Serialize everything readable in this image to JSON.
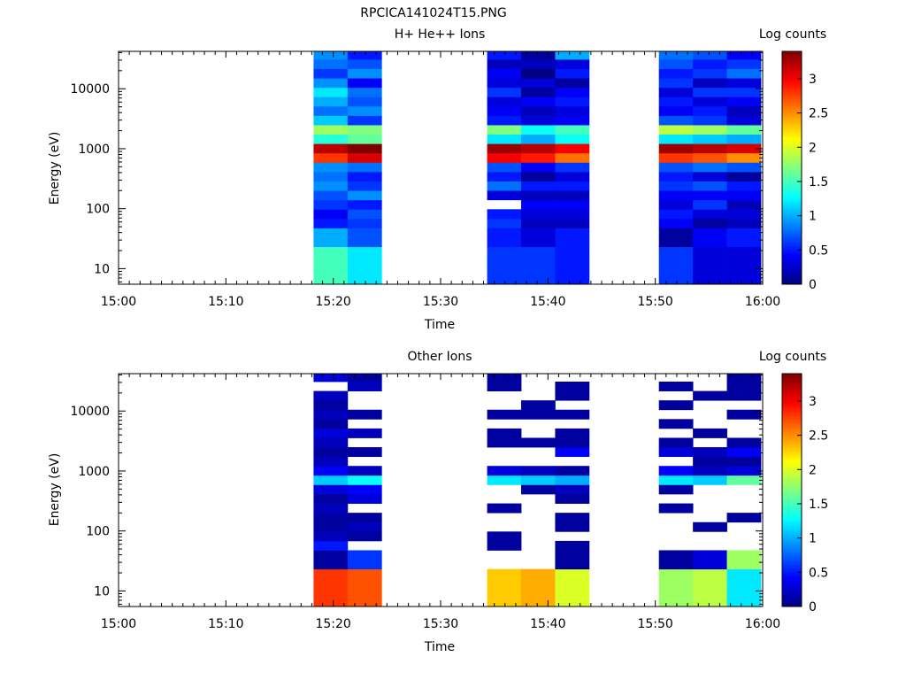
{
  "figure_title": "RPCICA141024T15.PNG",
  "chart_data": [
    {
      "type": "heatmap",
      "title": "H+ He++ Ions",
      "xlabel": "Time",
      "ylabel": "Energy (eV)",
      "x_ticks": [
        "15:00",
        "15:10",
        "15:20",
        "15:30",
        "15:40",
        "15:50",
        "16:00"
      ],
      "xlim": [
        "15:00",
        "16:00"
      ],
      "y_scale": "log",
      "y_ticks": [
        10,
        100,
        1000,
        10000
      ],
      "ylim": [
        5.5,
        42000
      ],
      "colorbar": {
        "label": "Log counts",
        "range": [
          0,
          3.4
        ],
        "ticks": [
          "0",
          "0.5",
          "1",
          "1.5",
          "2",
          "2.5",
          "3"
        ],
        "colormap": "jet"
      },
      "energy_bins": [
        5.5,
        7.9,
        11.3,
        16.2,
        23.2,
        33.3,
        47.7,
        68.3,
        97.9,
        140.3,
        201,
        288,
        413,
        592,
        848,
        1215,
        1741,
        2494,
        3574,
        5121,
        7338,
        10514,
        15065,
        21586,
        30929,
        42000
      ],
      "sweeps": [
        {
          "start": "15:18:10",
          "end": "15:21:20",
          "log_counts": [
            1.5,
            1.5,
            1.5,
            1.5,
            1.0,
            1.0,
            0.5,
            0.4,
            0.6,
            0.7,
            0.9,
            0.8,
            0.9,
            2.8,
            3.2,
            1.4,
            1.8,
            1.1,
            0.8,
            1.0,
            1.2,
            0.9,
            0.6,
            0.8,
            0.9
          ]
        },
        {
          "start": "15:21:20",
          "end": "15:24:30",
          "log_counts": [
            1.2,
            1.2,
            1.2,
            1.2,
            0.7,
            0.7,
            0.6,
            0.7,
            0.5,
            0.9,
            0.6,
            0.5,
            0.8,
            3.1,
            3.4,
            1.6,
            1.7,
            0.6,
            0.9,
            0.7,
            0.8,
            0.4,
            0.9,
            0.7,
            0.5
          ]
        },
        {
          "start": "15:34:20",
          "end": "15:37:30",
          "log_counts": [
            0.6,
            0.6,
            0.6,
            0.6,
            0.5,
            0.5,
            0.6,
            0.5,
            null,
            0.3,
            0.8,
            0.5,
            0.7,
            3.0,
            3.3,
            1.2,
            1.7,
            0.5,
            0.4,
            0.3,
            0.6,
            0.3,
            0.4,
            0.2,
            0.5
          ]
        },
        {
          "start": "15:37:30",
          "end": "15:40:40",
          "log_counts": [
            0.6,
            0.6,
            0.6,
            0.6,
            0.3,
            0.3,
            0.2,
            0.3,
            0.4,
            0.2,
            0.5,
            0.1,
            0.4,
            2.9,
            3.2,
            1.0,
            1.3,
            0.3,
            0.2,
            0.4,
            0.1,
            0.3,
            0.0,
            0.2,
            0.1
          ]
        },
        {
          "start": "15:40:40",
          "end": "15:43:50",
          "log_counts": [
            0.5,
            0.5,
            0.5,
            0.5,
            0.5,
            0.5,
            0.2,
            0.3,
            0.4,
            0.2,
            0.5,
            0.3,
            0.6,
            2.6,
            3.0,
            1.3,
            1.5,
            0.4,
            0.3,
            0.5,
            0.4,
            0.1,
            0.5,
            0.3,
            1.0
          ]
        },
        {
          "start": "15:50:20",
          "end": "15:53:30",
          "log_counts": [
            0.6,
            0.6,
            0.6,
            0.6,
            0.1,
            0.1,
            0.4,
            0.5,
            0.3,
            0.4,
            0.6,
            0.5,
            0.7,
            2.8,
            3.3,
            1.2,
            1.9,
            0.7,
            0.4,
            0.5,
            0.3,
            0.6,
            0.5,
            0.7,
            0.8
          ]
        },
        {
          "start": "15:53:30",
          "end": "15:56:40",
          "log_counts": [
            0.3,
            0.3,
            0.3,
            0.3,
            0.4,
            0.4,
            0.1,
            0.3,
            0.6,
            0.4,
            0.7,
            0.3,
            0.8,
            2.7,
            3.2,
            1.1,
            1.8,
            0.6,
            0.5,
            0.3,
            0.6,
            0.2,
            0.6,
            0.5,
            0.7
          ]
        },
        {
          "start": "15:56:40",
          "end": "15:59:50",
          "log_counts": [
            0.3,
            0.3,
            0.3,
            0.3,
            0.5,
            0.5,
            0.2,
            0.3,
            0.2,
            0.4,
            0.5,
            0.1,
            0.7,
            2.5,
            3.1,
            1.0,
            1.6,
            0.3,
            0.2,
            0.4,
            0.6,
            0.3,
            0.8,
            0.6,
            0.4
          ]
        }
      ]
    },
    {
      "type": "heatmap",
      "title": "Other Ions",
      "xlabel": "Time",
      "ylabel": "Energy (eV)",
      "x_ticks": [
        "15:00",
        "15:10",
        "15:20",
        "15:30",
        "15:40",
        "15:50",
        "16:00"
      ],
      "xlim": [
        "15:00",
        "16:00"
      ],
      "y_scale": "log",
      "y_ticks": [
        10,
        100,
        1000,
        10000
      ],
      "ylim": [
        5.5,
        42000
      ],
      "colorbar": {
        "label": "Log counts",
        "range": [
          0,
          3.4
        ],
        "ticks": [
          "0",
          "0.5",
          "1",
          "1.5",
          "2",
          "2.5",
          "3"
        ],
        "colormap": "jet"
      },
      "energy_bins": [
        5.5,
        7.9,
        11.3,
        16.2,
        23.2,
        33.3,
        47.7,
        68.3,
        97.9,
        140.3,
        201,
        288,
        413,
        592,
        848,
        1215,
        1741,
        2494,
        3574,
        5121,
        7338,
        10514,
        15065,
        21586,
        30929,
        42000
      ],
      "sweeps": [
        {
          "start": "15:18:10",
          "end": "15:21:20",
          "log_counts": [
            2.8,
            2.8,
            2.8,
            2.8,
            0.1,
            0.1,
            0.5,
            0.2,
            0.1,
            0.1,
            0.2,
            0.1,
            0.3,
            1.1,
            0.4,
            0.2,
            0.1,
            0.2,
            0.3,
            0.1,
            0.2,
            0.1,
            0.2,
            null,
            0.3
          ]
        },
        {
          "start": "15:21:20",
          "end": "15:24:30",
          "log_counts": [
            2.7,
            2.7,
            2.7,
            2.7,
            0.6,
            0.6,
            null,
            0.1,
            0.2,
            0.1,
            null,
            0.3,
            0.4,
            1.3,
            0.2,
            null,
            0.1,
            null,
            0.2,
            null,
            0.1,
            null,
            null,
            0.2,
            0.1
          ]
        },
        {
          "start": "15:34:20",
          "end": "15:37:30",
          "log_counts": [
            2.3,
            2.3,
            2.3,
            2.3,
            null,
            null,
            0.1,
            0.1,
            null,
            null,
            0.1,
            null,
            null,
            1.2,
            0.3,
            null,
            null,
            0.1,
            0.1,
            null,
            0.1,
            null,
            null,
            0.1,
            0.1
          ]
        },
        {
          "start": "15:37:30",
          "end": "15:40:40",
          "log_counts": [
            2.4,
            2.4,
            2.4,
            2.4,
            null,
            null,
            null,
            null,
            null,
            null,
            null,
            null,
            0.1,
            1.1,
            0.2,
            null,
            null,
            0.1,
            null,
            null,
            0.1,
            0.1,
            null,
            null,
            null
          ]
        },
        {
          "start": "15:40:40",
          "end": "15:43:50",
          "log_counts": [
            2.0,
            2.0,
            2.0,
            2.0,
            0.1,
            0.1,
            0.1,
            null,
            0.1,
            0.1,
            null,
            0.1,
            0.2,
            1.0,
            0.1,
            null,
            0.4,
            0.1,
            0.1,
            null,
            0.1,
            null,
            0.1,
            0.1,
            null
          ]
        },
        {
          "start": "15:50:20",
          "end": "15:53:30",
          "log_counts": [
            1.8,
            1.8,
            1.8,
            1.8,
            0.1,
            0.1,
            null,
            null,
            null,
            null,
            0.1,
            null,
            0.1,
            1.2,
            0.4,
            null,
            0.3,
            0.1,
            null,
            0.1,
            null,
            0.1,
            null,
            0.1,
            null
          ]
        },
        {
          "start": "15:53:30",
          "end": "15:56:40",
          "log_counts": [
            1.9,
            1.9,
            1.9,
            1.9,
            0.3,
            0.3,
            null,
            null,
            0.1,
            null,
            null,
            null,
            null,
            1.1,
            0.2,
            0.1,
            0.2,
            null,
            0.1,
            null,
            null,
            null,
            0.1,
            null,
            null
          ]
        },
        {
          "start": "15:56:40",
          "end": "15:59:50",
          "log_counts": [
            1.2,
            1.2,
            1.2,
            1.2,
            1.8,
            1.8,
            null,
            null,
            null,
            0.1,
            null,
            null,
            null,
            1.6,
            0.3,
            0.1,
            0.4,
            0.1,
            null,
            null,
            0.1,
            null,
            0.1,
            0.1,
            0.1
          ]
        }
      ]
    }
  ]
}
